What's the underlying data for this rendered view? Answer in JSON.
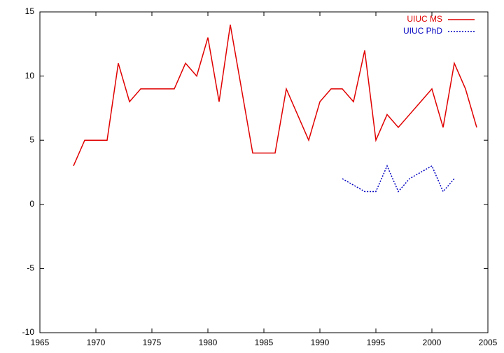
{
  "chart_data": {
    "type": "line",
    "x": [
      1968,
      1969,
      1970,
      1971,
      1972,
      1973,
      1974,
      1975,
      1976,
      1977,
      1978,
      1979,
      1980,
      1981,
      1982,
      1983,
      1984,
      1985,
      1986,
      1987,
      1988,
      1989,
      1990,
      1991,
      1992,
      1993,
      1994,
      1995,
      1996,
      1997,
      1998,
      1999,
      2000,
      2001,
      2002,
      2003,
      2004
    ],
    "series": [
      {
        "name": "UIUC MS",
        "color": "#e00000",
        "dash": "solid",
        "values": [
          3,
          5,
          5,
          5,
          11,
          8,
          9,
          9,
          9,
          9,
          11,
          10,
          13,
          8,
          14,
          9,
          4,
          4,
          4,
          9,
          7,
          5,
          8,
          9,
          9,
          8,
          12,
          5,
          7,
          6,
          7,
          8,
          9,
          6,
          11,
          9,
          6
        ]
      },
      {
        "name": "UIUC PhD",
        "color": "#0000c0",
        "dash": "dotted",
        "values": [
          null,
          null,
          null,
          null,
          null,
          null,
          null,
          null,
          null,
          null,
          null,
          null,
          null,
          null,
          null,
          null,
          null,
          null,
          null,
          null,
          null,
          null,
          null,
          null,
          2,
          1.5,
          1,
          1,
          3,
          1,
          2,
          2.5,
          3,
          1,
          2,
          null,
          null
        ]
      }
    ],
    "xlim": [
      1965,
      2005
    ],
    "xticks": [
      1965,
      1970,
      1975,
      1980,
      1985,
      1990,
      1995,
      2000,
      2005
    ],
    "ylim": [
      -10,
      15
    ],
    "yticks": [
      -10,
      -5,
      0,
      5,
      10,
      15
    ],
    "legend": "top-right"
  }
}
